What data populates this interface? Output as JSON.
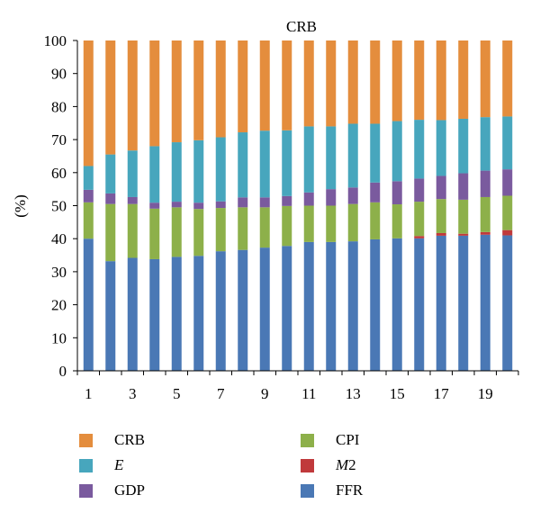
{
  "chart_data": {
    "type": "bar",
    "stacked": true,
    "title": "CRB",
    "xlabel": "",
    "ylabel": "(%)",
    "ylim": [
      0,
      100
    ],
    "yticks": [
      0,
      10,
      20,
      30,
      40,
      50,
      60,
      70,
      80,
      90,
      100
    ],
    "categories": [
      1,
      2,
      3,
      4,
      5,
      6,
      7,
      8,
      9,
      10,
      11,
      12,
      13,
      14,
      15,
      16,
      17,
      18,
      19,
      20
    ],
    "xtick_labels": [
      "1",
      "3",
      "5",
      "7",
      "9",
      "11",
      "13",
      "15",
      "17",
      "19"
    ],
    "grid": false,
    "legend_position": "bottom",
    "series": [
      {
        "name": "FFR",
        "color": "#4a78b5",
        "values": [
          40,
          33.2,
          34.2,
          33.8,
          34.5,
          34.8,
          36.2,
          36.6,
          37.3,
          37.8,
          39,
          39,
          39.2,
          39.8,
          40.1,
          40.1,
          40.9,
          40.9,
          41.2,
          41
        ]
      },
      {
        "name": "M2",
        "color": "#c0393b",
        "values": [
          0,
          0,
          0,
          0,
          0,
          0,
          0,
          0,
          0,
          0,
          0,
          0,
          0,
          0,
          0,
          0.7,
          0.8,
          0.6,
          0.8,
          1.6
        ]
      },
      {
        "name": "CPI",
        "color": "#8db04a",
        "values": [
          11,
          17.3,
          16.3,
          15.3,
          15,
          14.2,
          13.1,
          12.9,
          12.2,
          12.1,
          11,
          11,
          11.3,
          11.2,
          10.3,
          10.4,
          10.3,
          10.3,
          10.6,
          10.4
        ]
      },
      {
        "name": "GDP",
        "color": "#7a5a9e",
        "values": [
          3.8,
          3.2,
          2.1,
          1.8,
          1.7,
          1.9,
          2,
          3,
          3,
          3,
          4,
          5,
          5,
          6,
          7,
          7,
          7,
          8,
          8,
          8
        ]
      },
      {
        "name": "E",
        "color": "#47a6bd",
        "values": [
          7.2,
          11.8,
          14.1,
          17.1,
          18,
          18.9,
          19.4,
          19.7,
          20.2,
          19.9,
          20,
          19,
          19.3,
          17.8,
          18.2,
          17.8,
          16.9,
          16.5,
          16.2,
          16
        ]
      },
      {
        "name": "CRB",
        "color": "#e48d3d",
        "values": [
          38,
          34.5,
          33.3,
          32,
          30.8,
          30.2,
          29.3,
          27.8,
          27.3,
          27.2,
          26,
          26,
          25.2,
          25.2,
          24.4,
          24,
          24.1,
          23.7,
          23.2,
          23
        ]
      }
    ]
  },
  "legend": {
    "items": [
      {
        "key": "CRB",
        "label": "CRB",
        "italic": false,
        "color": "#e48d3d"
      },
      {
        "key": "CPI",
        "label": "CPI",
        "italic": false,
        "color": "#8db04a"
      },
      {
        "key": "E",
        "label": "E",
        "italic": true,
        "color": "#47a6bd"
      },
      {
        "key": "M2",
        "label": "M2",
        "italic": false,
        "italic_prefix": "M",
        "suffix": "2",
        "color": "#c0393b"
      },
      {
        "key": "GDP",
        "label": "GDP",
        "italic": false,
        "color": "#7a5a9e"
      },
      {
        "key": "FFR",
        "label": "FFR",
        "italic": false,
        "color": "#4a78b5"
      }
    ]
  }
}
